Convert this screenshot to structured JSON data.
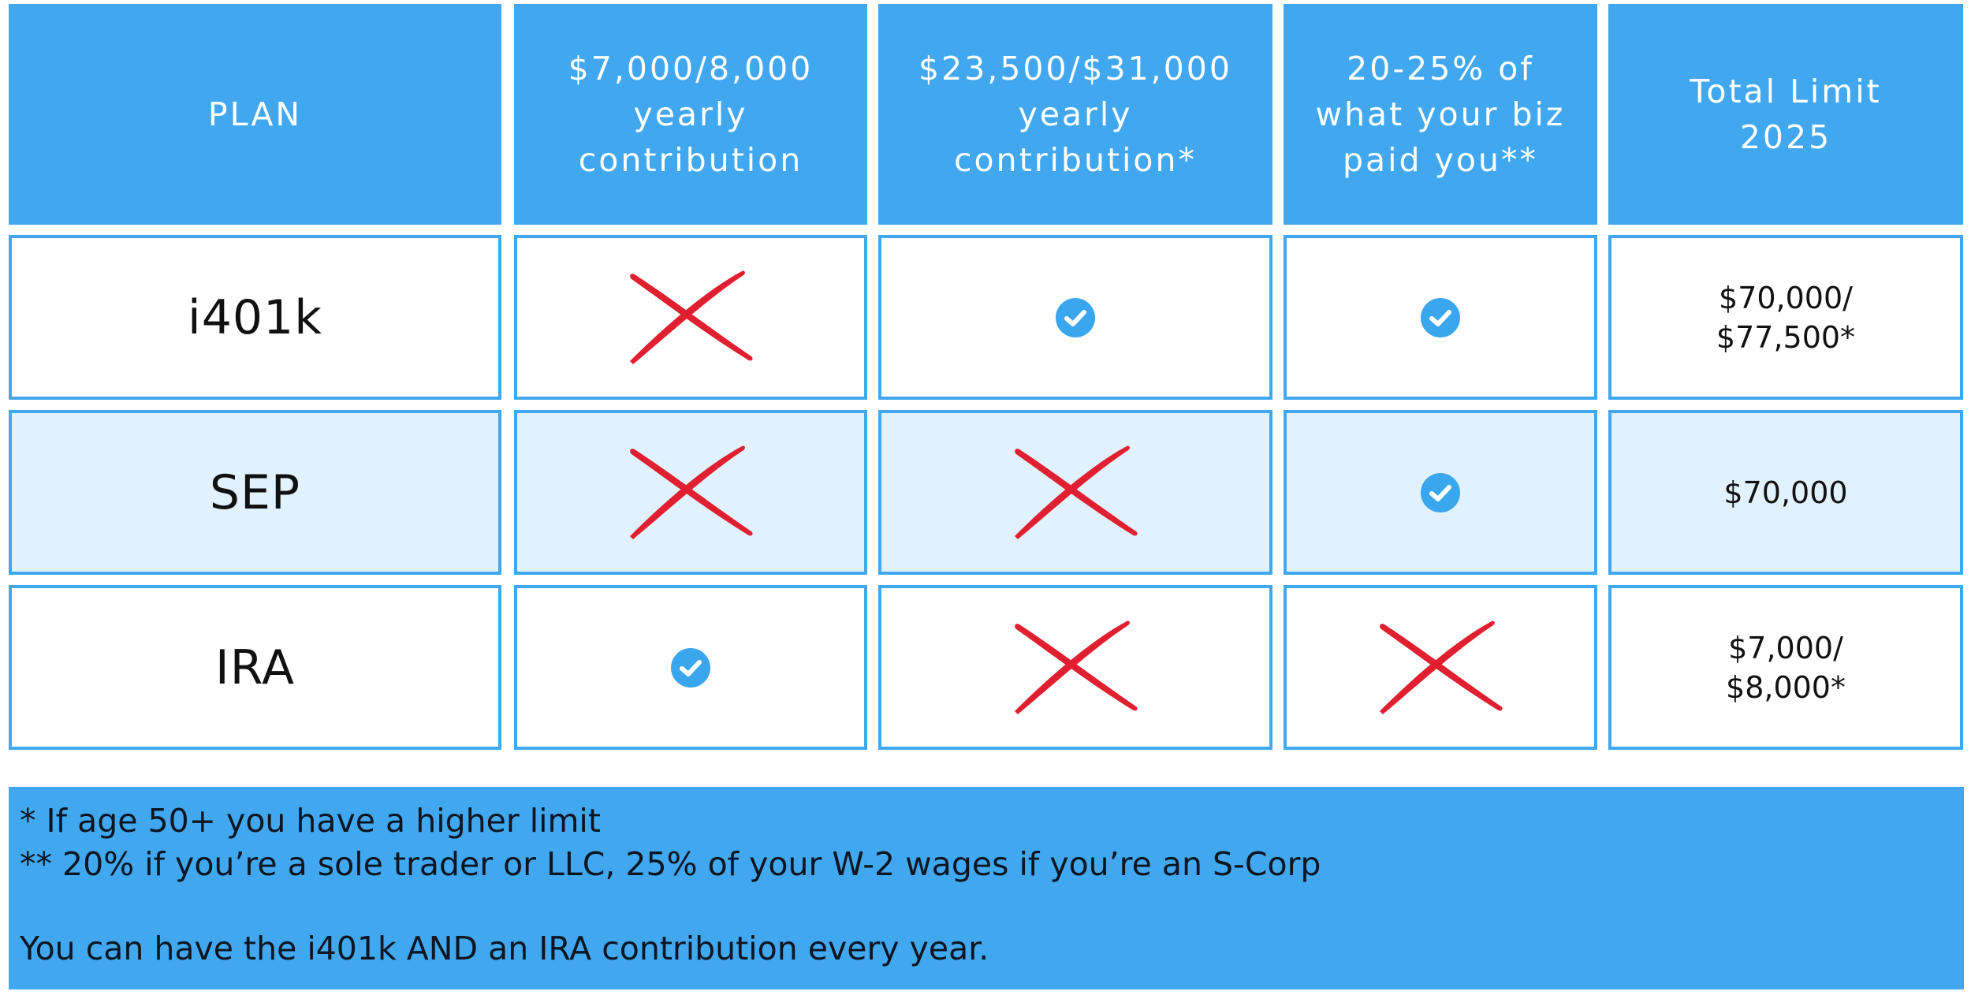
{
  "colors": {
    "accent_blue": "#41a8f0",
    "row_highlight": "#e1f1fd",
    "cross_red": "#e02030",
    "check_blue": "#3aa6ee"
  },
  "table": {
    "headers": [
      "PLAN",
      "$7,000/8,000\nyearly\ncontribution",
      "$23,500/$31,000\nyearly\ncontribution*",
      "20-25% of\nwhat your biz\npaid you**",
      "Total Limit\n2025"
    ],
    "rows": [
      {
        "plan": "i401k",
        "marks": [
          "cross-icon",
          "check-icon",
          "check-icon"
        ],
        "limit": "$70,000/\n$77,500*"
      },
      {
        "plan": "SEP",
        "marks": [
          "cross-icon",
          "cross-icon",
          "check-icon"
        ],
        "limit": "$70,000"
      },
      {
        "plan": "IRA",
        "marks": [
          "check-icon",
          "cross-icon",
          "cross-icon"
        ],
        "limit": "$7,000/\n$8,000*"
      }
    ]
  },
  "footer": {
    "note_1": "* If age 50+ you have a higher limit",
    "note_2": "** 20% if you’re a sole trader or LLC, 25% of your W-2 wages if you’re an S-Corp",
    "note_3": "You can have the i401k AND an IRA contribution every year."
  }
}
